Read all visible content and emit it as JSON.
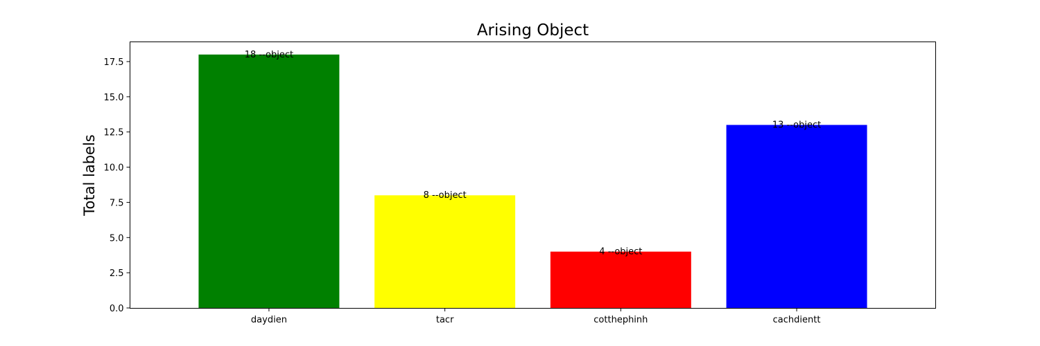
{
  "chart_data": {
    "type": "bar",
    "title": "Arising Object",
    "xlabel": "",
    "ylabel": "Total labels",
    "categories": [
      "daydien",
      "tacr",
      "cotthephinh",
      "cachdientt"
    ],
    "values": [
      18,
      8,
      4,
      13
    ],
    "colors": [
      "#008000",
      "#ffff00",
      "#ff0000",
      "#0000ff"
    ],
    "data_labels": [
      "18 --object",
      "8 --object",
      "4 --object",
      "13 --object"
    ],
    "y_ticks": [
      "0.0",
      "2.5",
      "5.0",
      "7.5",
      "10.0",
      "12.5",
      "15.0",
      "17.5"
    ],
    "ylim": [
      0,
      18.9
    ],
    "grid": false,
    "legend": "none"
  }
}
